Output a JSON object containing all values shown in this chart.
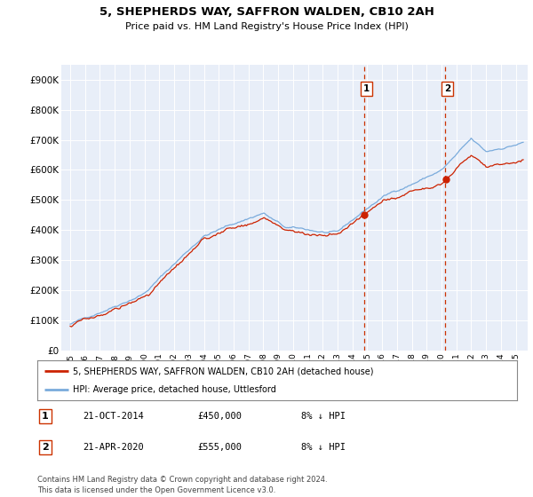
{
  "title": "5, SHEPHERDS WAY, SAFFRON WALDEN, CB10 2AH",
  "subtitle": "Price paid vs. HM Land Registry's House Price Index (HPI)",
  "bg_color": "#ffffff",
  "plot_bg_color": "#e8eef8",
  "grid_color": "#ffffff",
  "hpi_color": "#7aabdc",
  "price_color": "#cc2200",
  "marker1_x": 2014.8,
  "marker2_x": 2020.25,
  "marker1_date": "21-OCT-2014",
  "marker1_price": "£450,000",
  "marker1_pct": "8% ↓ HPI",
  "marker2_date": "21-APR-2020",
  "marker2_price": "£555,000",
  "marker2_pct": "8% ↓ HPI",
  "legend_line1": "5, SHEPHERDS WAY, SAFFRON WALDEN, CB10 2AH (detached house)",
  "legend_line2": "HPI: Average price, detached house, Uttlesford",
  "footer": "Contains HM Land Registry data © Crown copyright and database right 2024.\nThis data is licensed under the Open Government Licence v3.0.",
  "ylim": [
    0,
    950000
  ],
  "yticks": [
    0,
    100000,
    200000,
    300000,
    400000,
    500000,
    600000,
    700000,
    800000,
    900000
  ],
  "ytick_labels": [
    "£0",
    "£100K",
    "£200K",
    "£300K",
    "£400K",
    "£500K",
    "£600K",
    "£700K",
    "£800K",
    "£900K"
  ]
}
